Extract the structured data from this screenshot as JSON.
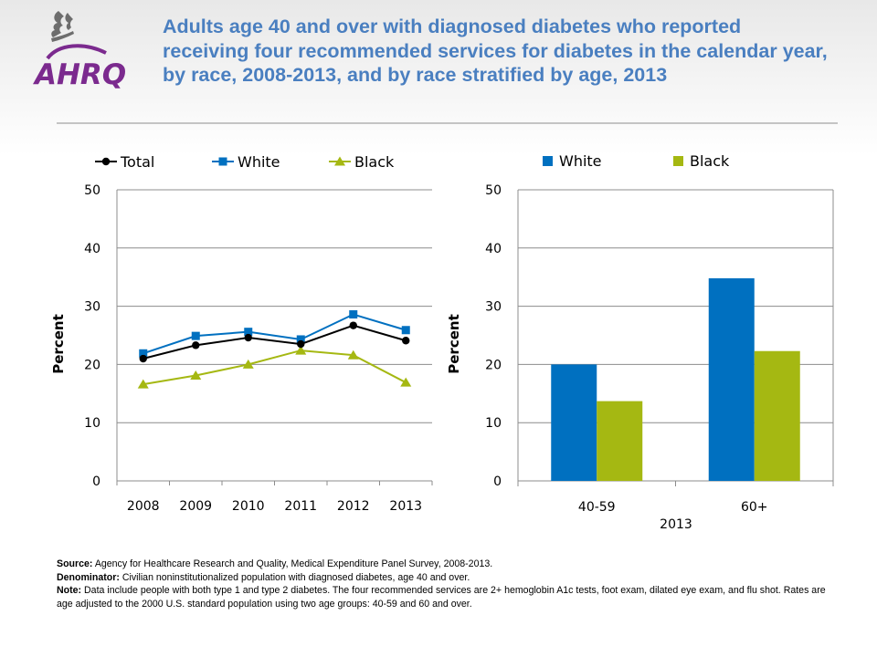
{
  "header": {
    "title": "Adults age 40 and over with diagnosed diabetes who reported receiving four recommended services for diabetes in the calendar year, by race, 2008-2013, and by race stratified by age, 2013",
    "logo_text": "AHRQ"
  },
  "colors": {
    "total": "#000000",
    "white": "#0070c0",
    "black": "#a5b812",
    "title": "#4a7fc0"
  },
  "chart_data": [
    {
      "type": "line",
      "x": [
        "2008",
        "2009",
        "2010",
        "2011",
        "2012",
        "2013"
      ],
      "series": [
        {
          "name": "Total",
          "values": [
            21.0,
            23.3,
            24.6,
            23.5,
            26.7,
            24.1
          ],
          "color": "#000000",
          "marker": "circle"
        },
        {
          "name": "White",
          "values": [
            21.9,
            24.9,
            25.6,
            24.3,
            28.6,
            25.9
          ],
          "color": "#0070c0",
          "marker": "square"
        },
        {
          "name": "Black",
          "values": [
            16.6,
            18.1,
            20.0,
            22.4,
            21.6,
            16.9
          ],
          "color": "#a5b812",
          "marker": "triangle"
        }
      ],
      "ylabel": "Percent",
      "ylim": [
        0,
        50
      ],
      "yticks": [
        0,
        10,
        20,
        30,
        40,
        50
      ],
      "legend": "top",
      "grid": true
    },
    {
      "type": "bar",
      "categories": [
        "40-59",
        "60+"
      ],
      "series": [
        {
          "name": "White",
          "values": [
            20.0,
            34.8
          ],
          "color": "#0070c0"
        },
        {
          "name": "Black",
          "values": [
            13.7,
            22.3
          ],
          "color": "#a5b812"
        }
      ],
      "xlabel": "2013",
      "ylabel": "Percent",
      "ylim": [
        0,
        50
      ],
      "yticks": [
        0,
        10,
        20,
        30,
        40,
        50
      ],
      "legend": "top",
      "grid": true
    }
  ],
  "footer": {
    "source_label": "Source:",
    "source_text": "Agency for Healthcare Research and Quality, Medical Expenditure Panel Survey, 2008-2013.",
    "denominator_label": "Denominator:",
    "denominator_text": "Civilian noninstitutionalized population with diagnosed diabetes, age 40 and over.",
    "note_label": "Note:",
    "note_text": "Data include people with both type 1 and type 2 diabetes. The four recommended services are 2+ hemoglobin A1c tests, foot exam, dilated eye exam, and flu shot. Rates are age adjusted to the 2000 U.S. standard population using two age groups: 40-59 and 60 and over."
  }
}
